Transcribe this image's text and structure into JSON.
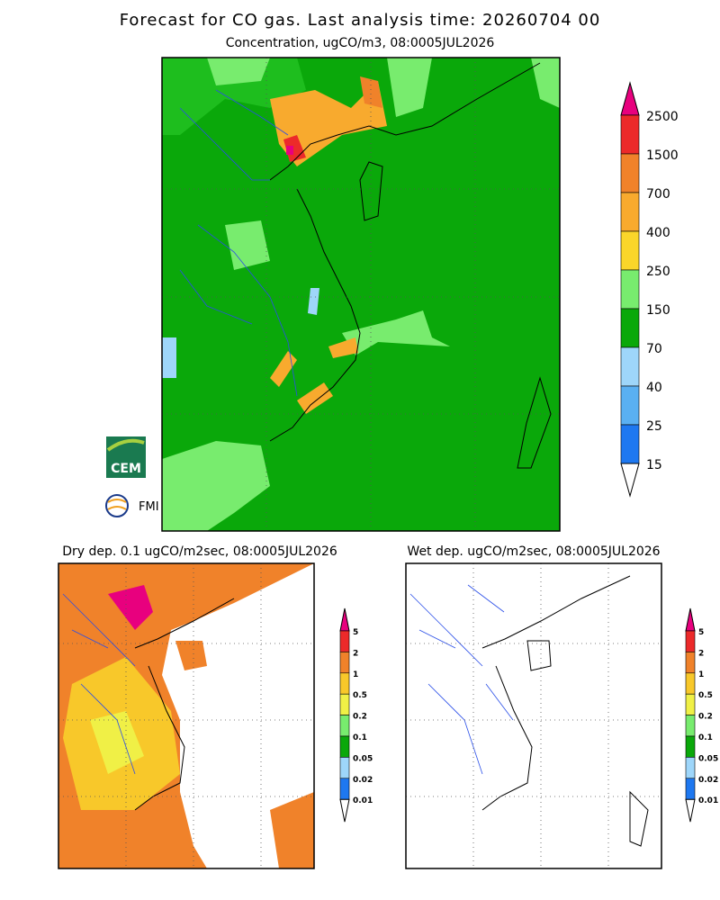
{
  "header": {
    "title": "Forecast for CO gas. Last analysis time: 20260704 00"
  },
  "panels": [
    {
      "title": "Concentration, ugCO/m3, 08:0005JUL2026",
      "legend": {
        "labels": [
          "2500",
          "1500",
          "700",
          "400",
          "250",
          "150",
          "70",
          "40",
          "25",
          "15"
        ],
        "colors": [
          "#e8007e",
          "#ec2a2a",
          "#f0822a",
          "#f8aa2e",
          "#fad62a",
          "#78ec6e",
          "#0aa80a",
          "#9ed6fa",
          "#5ab0f2",
          "#1e78f0",
          "#ffffff"
        ]
      }
    },
    {
      "title": "Dry dep. 0.1 ugCO/m2sec, 08:0005JUL2026",
      "legend": {
        "labels": [
          "5",
          "2",
          "1",
          "0.5",
          "0.2",
          "0.1",
          "0.05",
          "0.02",
          "0.01"
        ],
        "colors": [
          "#e8007e",
          "#ec2a2a",
          "#f0822a",
          "#f8c82a",
          "#f0f046",
          "#78ec6e",
          "#0aa80a",
          "#9ed6fa",
          "#1e78f0",
          "#ffffff"
        ]
      }
    },
    {
      "title": "Wet dep. ugCO/m2sec, 08:0005JUL2026",
      "legend": {
        "labels": [
          "5",
          "2",
          "1",
          "0.5",
          "0.2",
          "0.1",
          "0.05",
          "0.02",
          "0.01"
        ],
        "colors": [
          "#e8007e",
          "#ec2a2a",
          "#f0822a",
          "#f8c82a",
          "#f0f046",
          "#78ec6e",
          "#0aa80a",
          "#9ed6fa",
          "#1e78f0",
          "#ffffff"
        ]
      }
    }
  ],
  "logos": [
    "CEM",
    "FMI"
  ]
}
